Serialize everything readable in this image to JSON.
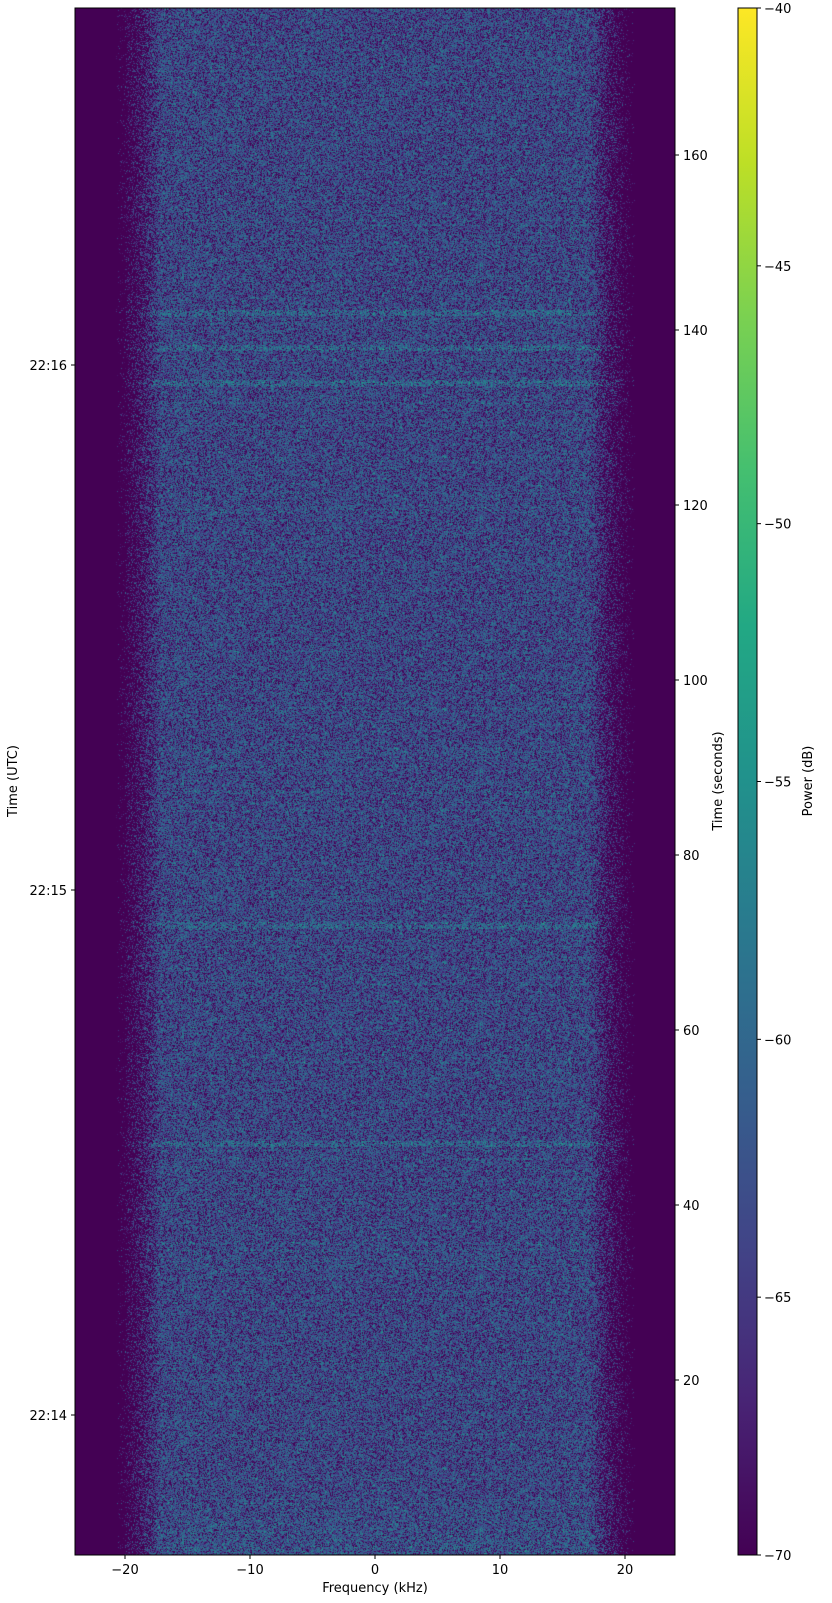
{
  "chart_data": {
    "type": "heatmap",
    "subtype": "spectrogram",
    "xlabel": "Frequency (kHz)",
    "ylabel_left": "Time (UTC)",
    "ylabel_right": "Time (seconds)",
    "xlim": [
      -24,
      24
    ],
    "ylim": [
      0,
      176.8
    ],
    "xticks": [
      -20,
      -10,
      0,
      10,
      20
    ],
    "xtick_labels": [
      "−20",
      "−10",
      "0",
      "10",
      "20"
    ],
    "yticks_right": [
      20,
      40,
      60,
      80,
      100,
      120,
      140,
      160
    ],
    "yticks_right_labels": [
      "20",
      "40",
      "60",
      "80",
      "100",
      "120",
      "140",
      "160"
    ],
    "yticks_left_seconds": [
      16,
      76,
      136
    ],
    "yticks_left_labels": [
      "22:14",
      "22:15",
      "22:16"
    ],
    "colorbar": {
      "label": "Power (dB)",
      "colormap": "viridis",
      "range": [
        -70,
        -40
      ],
      "ticks": [
        -70,
        -65,
        -60,
        -55,
        -50,
        -45,
        -40
      ],
      "tick_labels": [
        "−70",
        "−65",
        "−60",
        "−55",
        "−50",
        "−45",
        "−40"
      ]
    },
    "description_values": {
      "noise_floor_db": -62,
      "outside_band_db": -70,
      "band_edges_khz": [
        -20,
        20
      ],
      "brighter_rows_seconds": [
        47,
        72,
        134,
        138,
        142
      ]
    }
  }
}
